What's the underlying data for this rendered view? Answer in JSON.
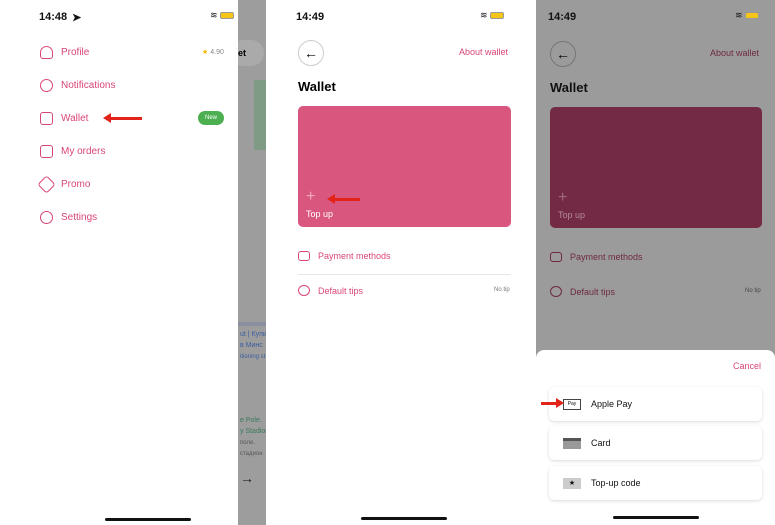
{
  "screen1": {
    "time": "14:48",
    "menu": [
      {
        "label": "Profile",
        "icon": "user-icon"
      },
      {
        "label": "Notifications",
        "icon": "bell-icon"
      },
      {
        "label": "Wallet",
        "icon": "wallet-icon"
      },
      {
        "label": "My orders",
        "icon": "book-icon"
      },
      {
        "label": "Promo",
        "icon": "tag-icon"
      },
      {
        "label": "Settings",
        "icon": "gear-icon"
      }
    ],
    "rating": "4.90",
    "new_badge": "New",
    "map_texts": [
      "et",
      "ut | Купи",
      "в Минс",
      "itioning st",
      "e Pole.",
      "y Stadion",
      "поле.",
      "стадион"
    ]
  },
  "screen2": {
    "time": "14:49",
    "about_link": "About wallet",
    "title": "Wallet",
    "top_up": "Top up",
    "payment_methods": "Payment methods",
    "default_tips": "Default tips",
    "default_tips_value": "No tip",
    "card_color": "#d9567f"
  },
  "screen3": {
    "time": "14:49",
    "about_link": "About wallet",
    "title": "Wallet",
    "top_up": "Top up",
    "payment_methods": "Payment methods",
    "default_tips": "Default tips",
    "default_tips_value": "No tip",
    "cancel": "Cancel",
    "options": [
      {
        "label": "Apple Pay",
        "icon": "apple-pay-icon",
        "icon_text": "Pay"
      },
      {
        "label": "Card",
        "icon": "card-icon"
      },
      {
        "label": "Top-up code",
        "icon": "star-code-icon",
        "icon_text": "★"
      }
    ]
  },
  "accent": "#d9457a"
}
